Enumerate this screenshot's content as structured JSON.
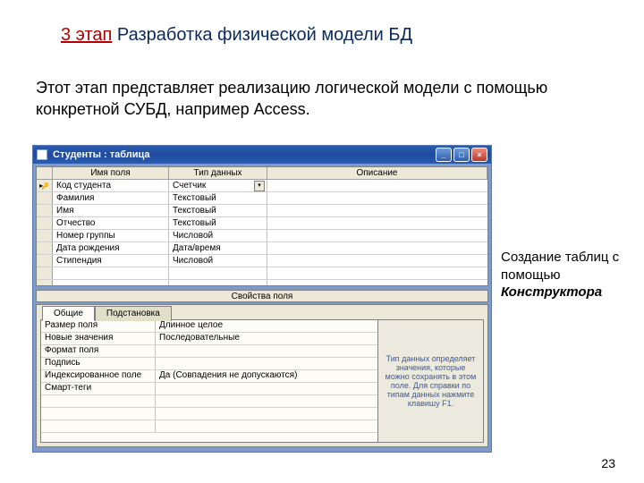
{
  "slide": {
    "stage_label": "3 этап",
    "title_rest": " Разработка физической модели БД",
    "description": "Этот этап представляет реализацию логической модели с помощью конкретной СУБД, например Access.",
    "right_caption_prefix": "Создание таблиц с помощью ",
    "right_caption_em": "Конструктора",
    "page_number": "23"
  },
  "window": {
    "title": "Студенты : таблица",
    "columns": {
      "selector": "",
      "field_name": "Имя поля",
      "data_type": "Тип данных",
      "description": "Описание"
    },
    "rows": [
      {
        "pk": true,
        "name": "Код студента",
        "type": "Счетчик",
        "active": true,
        "dropdown": true
      },
      {
        "pk": false,
        "name": "Фамилия",
        "type": "Текстовый"
      },
      {
        "pk": false,
        "name": "Имя",
        "type": "Текстовый"
      },
      {
        "pk": false,
        "name": "Отчество",
        "type": "Текстовый"
      },
      {
        "pk": false,
        "name": "Номер группы",
        "type": "Числовой"
      },
      {
        "pk": false,
        "name": "Дата рождения",
        "type": "Дата/время"
      },
      {
        "pk": false,
        "name": "Стипендия",
        "type": "Числовой"
      }
    ],
    "empty_rows": 2,
    "field_props_label": "Свойства поля",
    "tabs": {
      "general": "Общие",
      "lookup": "Подстановка"
    },
    "props": [
      {
        "label": "Размер поля",
        "value": "Длинное целое"
      },
      {
        "label": "Новые значения",
        "value": "Последовательные"
      },
      {
        "label": "Формат поля",
        "value": ""
      },
      {
        "label": "Подпись",
        "value": ""
      },
      {
        "label": "Индексированное поле",
        "value": "Да (Совпадения не допускаются)"
      },
      {
        "label": "Смарт-теги",
        "value": ""
      }
    ],
    "extra_prop_rows": 3,
    "help_text": "Тип данных определяет значения, которые можно сохранять в этом поле.  Для справки по типам данных нажмите клавишу F1."
  },
  "colors": {
    "title_stage": "#b00000",
    "title_text": "#0a2a5a",
    "window_chrome": "#7f9bc9",
    "titlebar_grad_a": "#2a5db0",
    "titlebar_grad_b": "#1e4a9f",
    "close_btn": "#c0392b",
    "panel_bg": "#ece9d8",
    "help_text_color": "#3a5a9a"
  }
}
